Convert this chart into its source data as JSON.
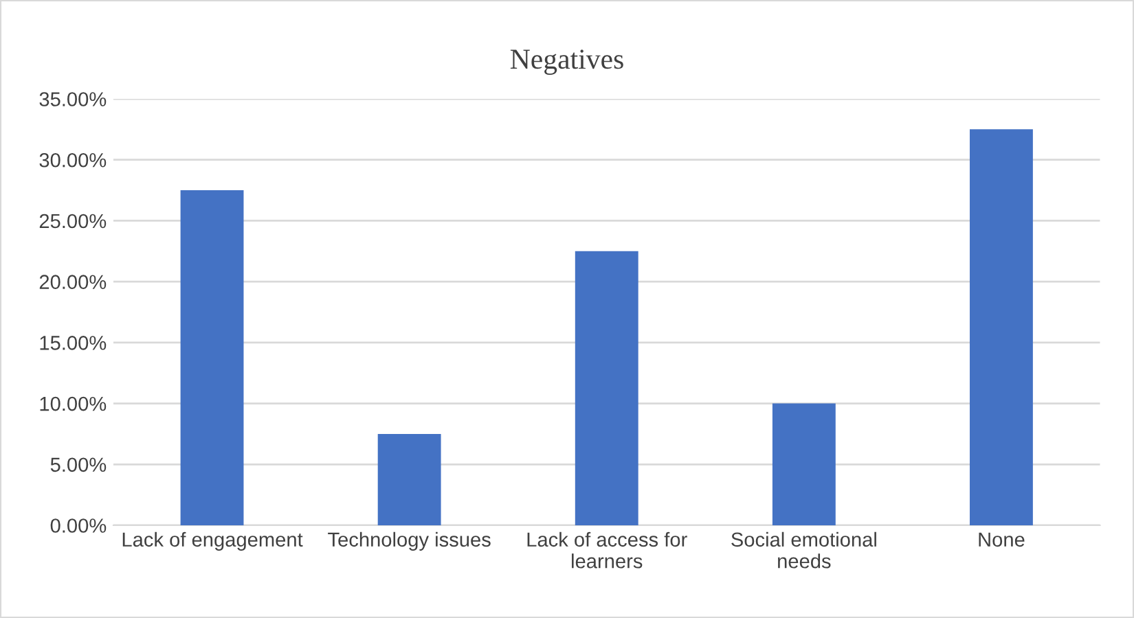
{
  "chart_data": {
    "type": "bar",
    "title": "Negatives",
    "categories": [
      "Lack of engagement",
      "Technology issues",
      "Lack of access for\nlearners",
      "Social emotional\nneeds",
      "None"
    ],
    "values": [
      27.5,
      7.5,
      22.5,
      10,
      32.5
    ],
    "color": "#4472c4",
    "ylim": [
      0,
      35
    ],
    "yticks": [
      {
        "value": 0,
        "label": "0.00%"
      },
      {
        "value": 5,
        "label": "5.00%"
      },
      {
        "value": 10,
        "label": "10.00%"
      },
      {
        "value": 15,
        "label": "15.00%"
      },
      {
        "value": 20,
        "label": "20.00%"
      },
      {
        "value": 25,
        "label": "25.00%"
      },
      {
        "value": 30,
        "label": "30.00%"
      },
      {
        "value": 35,
        "label": "35.00%"
      }
    ],
    "grid": "y"
  }
}
